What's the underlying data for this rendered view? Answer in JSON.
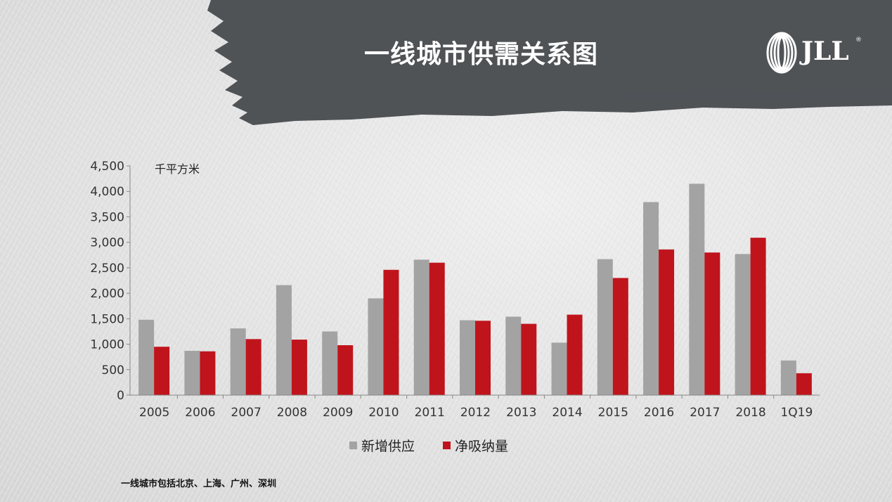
{
  "title": "一线城市供需关系图",
  "logo": {
    "text": "JLL",
    "mark": "®",
    "icon": "jll-rings-icon"
  },
  "footnote": "一线城市包括北京、上海、广州、深圳",
  "colors": {
    "banner": "#4f5356",
    "supply": "#a3a3a3",
    "absorption": "#c0141c"
  },
  "chart_data": {
    "type": "bar",
    "unit_label": "千平方米",
    "categories": [
      "2005",
      "2006",
      "2007",
      "2008",
      "2009",
      "2010",
      "2011",
      "2012",
      "2013",
      "2014",
      "2015",
      "2016",
      "2017",
      "2018",
      "1Q19"
    ],
    "series": [
      {
        "name": "新增供应",
        "values": [
          1480,
          870,
          1310,
          2160,
          1250,
          1900,
          2660,
          1470,
          1540,
          1030,
          2670,
          3790,
          4150,
          2770,
          680
        ]
      },
      {
        "name": "净吸纳量",
        "values": [
          950,
          860,
          1100,
          1090,
          980,
          2460,
          2600,
          1460,
          1400,
          1580,
          2300,
          2860,
          2800,
          3090,
          430
        ]
      }
    ],
    "ylim": [
      0,
      4500
    ],
    "yticks": [
      "0",
      "500",
      "1,000",
      "1,500",
      "2,000",
      "2,500",
      "3,000",
      "3,500",
      "4,000",
      "4,500"
    ],
    "ytick_values": [
      0,
      500,
      1000,
      1500,
      2000,
      2500,
      3000,
      3500,
      4000,
      4500
    ],
    "grid": false,
    "legend_position": "bottom"
  }
}
